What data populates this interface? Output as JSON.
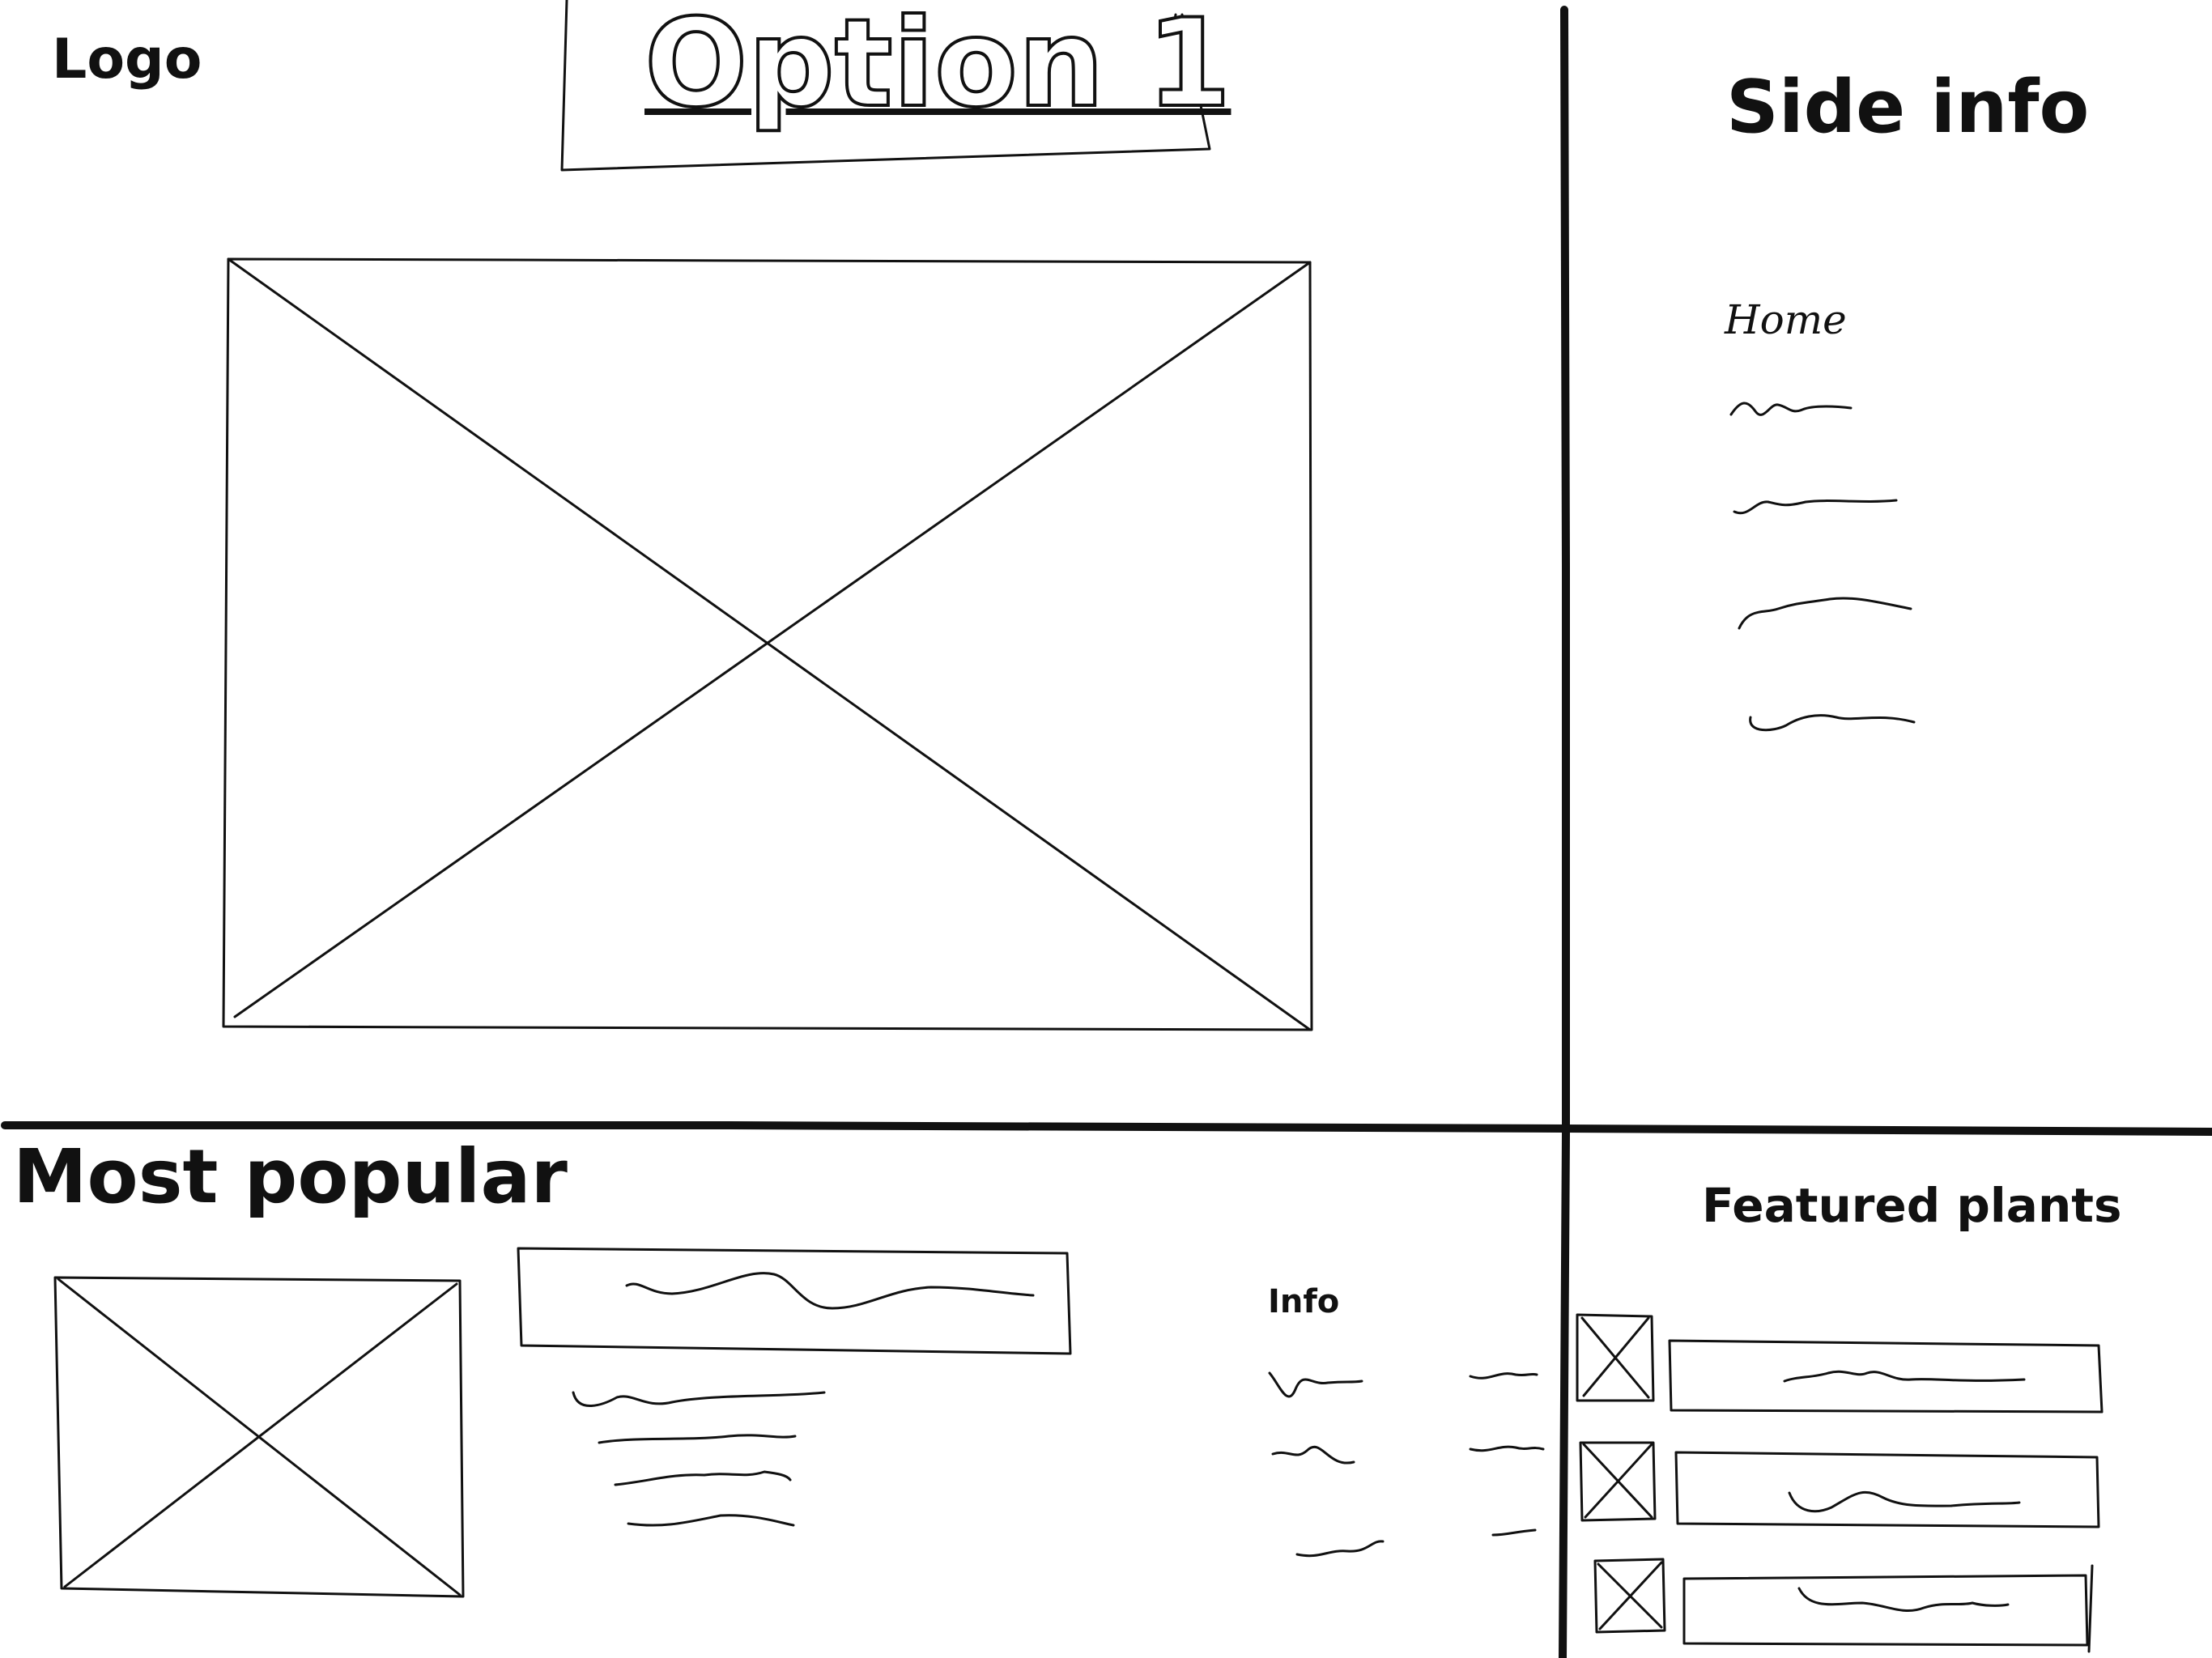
{
  "header": {
    "logo": "Logo",
    "option_title": "Option 1"
  },
  "sidebar": {
    "title": "Side info",
    "nav_first": "Home"
  },
  "most_popular": {
    "title": "Most popular",
    "info_label": "Info"
  },
  "featured": {
    "title": "Featured plants"
  },
  "colors": {
    "ink": "#111111",
    "background": "#ffffff"
  }
}
